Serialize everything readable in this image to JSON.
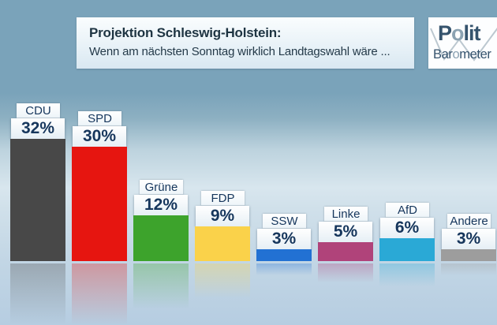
{
  "header": {
    "title": "Projektion Schleswig-Holstein:",
    "subtitle": "Wenn am nächsten Sonntag wirklich Landtagswahl wäre ..."
  },
  "logo": {
    "polit_p": "P",
    "polit_o": "o",
    "polit_rest": "lit",
    "baro_start": "Bar",
    "baro_o": "o",
    "baro_rest": "meter",
    "zigzag_color": "#bcc8d0"
  },
  "chart_data": {
    "type": "bar",
    "title": "Projektion Schleswig-Holstein",
    "subtitle": "Wenn am nächsten Sonntag wirklich Landtagswahl wäre ...",
    "categories": [
      "CDU",
      "SPD",
      "Grüne",
      "FDP",
      "SSW",
      "Linke",
      "AfD",
      "Andere"
    ],
    "slugs": [
      "cdu",
      "spd",
      "gruene",
      "fdp",
      "ssw",
      "linke",
      "afd",
      "andere"
    ],
    "values": [
      32,
      30,
      12,
      9,
      3,
      5,
      6,
      3
    ],
    "labels": [
      "32%",
      "30%",
      "12%",
      "9%",
      "3%",
      "5%",
      "6%",
      "3%"
    ],
    "unit": "%",
    "colors": [
      "#484848",
      "#e61510",
      "#3da32c",
      "#fad24a",
      "#2271d3",
      "#b0437a",
      "#2aa9d6",
      "#9d9d9d"
    ],
    "ylim": [
      0,
      35
    ],
    "grid": false,
    "legend": "none",
    "value_label_position": "above-bar-in-box",
    "reflection": true
  },
  "style": {
    "band_color": "#7aa3ba",
    "bottom_color": "#b6cde1",
    "label_text_color": "#16365c",
    "header_text_color": "#1e3442",
    "logo_navy": "#35536d",
    "logo_gray": "#8ba2b2"
  }
}
